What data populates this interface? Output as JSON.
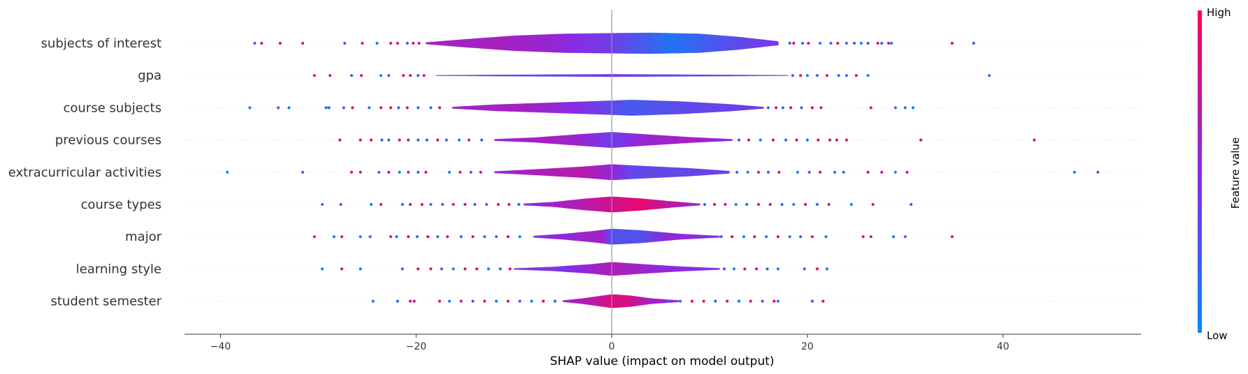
{
  "chart_data": {
    "type": "violin",
    "xlabel": "SHAP value (impact on model output)",
    "xlim": [
      -44,
      54
    ],
    "x_ticks": [
      -40,
      -20,
      0,
      20,
      40
    ],
    "x_tick_labels": [
      "−40",
      "−20",
      "0",
      "20",
      "40"
    ],
    "colorbar": {
      "label": "Feature value",
      "high_label": "High",
      "low_label": "Low",
      "low_color": "#008bfb",
      "high_color": "#ff0052"
    },
    "features": [
      {
        "name": "subjects of interest",
        "max_width": 1.0,
        "profile": [
          [
            -19,
            0.08
          ],
          [
            -15,
            0.38
          ],
          [
            -10,
            0.72
          ],
          [
            -5,
            0.9
          ],
          [
            0,
            0.96
          ],
          [
            4,
            1.0
          ],
          [
            9,
            0.9
          ],
          [
            13,
            0.6
          ],
          [
            17,
            0.18
          ]
        ],
        "color_profile": [
          [
            -19,
            0.6
          ],
          [
            -12,
            0.62
          ],
          [
            -6,
            0.55
          ],
          [
            0,
            0.4
          ],
          [
            6,
            0.12
          ],
          [
            11,
            0.28
          ],
          [
            17,
            0.45
          ]
        ],
        "outliers": [
          -36.5,
          -35.8,
          -33.9,
          -31.6,
          -27.3,
          -25.5,
          -24.0,
          -22.6,
          -21.9,
          -20.9,
          -20.3,
          -19.7,
          18.2,
          18.6,
          19.5,
          20.1,
          21.3,
          22.4,
          23.1,
          24.0,
          24.8,
          25.5,
          26.2,
          27.2,
          27.6,
          28.3,
          28.6,
          34.8,
          37.0
        ],
        "outlier_colors": [
          0.2,
          0.9,
          0.8,
          0.9,
          0.2,
          0.9,
          0.1,
          0.8,
          0.9,
          0.2,
          0.8,
          0.9,
          0.3,
          0.9,
          0.2,
          0.8,
          0.1,
          0.2,
          0.9,
          0.1,
          0.2,
          0.1,
          0.3,
          0.9,
          0.2,
          0.8,
          0.1,
          0.9,
          0.2
        ]
      },
      {
        "name": "gpa",
        "max_width": 0.12,
        "profile": [
          [
            -18,
            0.2
          ],
          [
            -10,
            0.6
          ],
          [
            0,
            1.0
          ],
          [
            10,
            0.6
          ],
          [
            18,
            0.2
          ]
        ],
        "color_profile": [
          [
            -18,
            0.5
          ],
          [
            -8,
            0.3
          ],
          [
            0,
            0.45
          ],
          [
            8,
            0.3
          ],
          [
            18,
            0.5
          ]
        ],
        "outliers": [
          -30.4,
          -28.8,
          -26.6,
          -25.6,
          -23.6,
          -22.8,
          -21.3,
          -20.6,
          -19.8,
          -19.2,
          18.5,
          19.3,
          20.0,
          21.0,
          22.0,
          23.2,
          24.0,
          25.0,
          26.2,
          38.6
        ],
        "outlier_colors": [
          0.9,
          0.8,
          0.2,
          0.9,
          0.1,
          0.2,
          0.9,
          0.8,
          0.2,
          0.9,
          0.2,
          0.9,
          0.1,
          0.2,
          0.8,
          0.1,
          0.2,
          0.9,
          0.1,
          0.2
        ]
      },
      {
        "name": "course subjects",
        "max_width": 0.75,
        "profile": [
          [
            -16.3,
            0.1
          ],
          [
            -12,
            0.4
          ],
          [
            -6,
            0.65
          ],
          [
            0,
            0.9
          ],
          [
            2,
            1.0
          ],
          [
            7,
            0.8
          ],
          [
            12,
            0.45
          ],
          [
            15.5,
            0.1
          ]
        ],
        "color_profile": [
          [
            -16,
            0.6
          ],
          [
            -9,
            0.62
          ],
          [
            -4,
            0.5
          ],
          [
            0,
            0.35
          ],
          [
            2,
            0.25
          ],
          [
            8,
            0.35
          ],
          [
            15,
            0.4
          ]
        ],
        "outliers": [
          -37.0,
          -34.1,
          -33.0,
          -29.2,
          -28.9,
          -27.4,
          -26.5,
          -24.8,
          -23.6,
          -22.6,
          -21.8,
          -20.9,
          -19.8,
          -18.5,
          -17.6,
          16.0,
          16.8,
          17.5,
          18.3,
          19.4,
          20.5,
          21.4,
          26.5,
          29.0,
          30.0,
          30.8
        ],
        "outlier_colors": [
          0.1,
          0.2,
          0.1,
          0.2,
          0.1,
          0.2,
          0.9,
          0.1,
          0.8,
          0.9,
          0.2,
          0.8,
          0.1,
          0.2,
          0.9,
          0.2,
          0.8,
          0.1,
          0.9,
          0.2,
          0.9,
          0.8,
          0.9,
          0.1,
          0.2,
          0.1
        ]
      },
      {
        "name": "previous courses",
        "max_width": 0.75,
        "profile": [
          [
            -12,
            0.1
          ],
          [
            -8,
            0.3
          ],
          [
            -3,
            0.75
          ],
          [
            0,
            1.0
          ],
          [
            3,
            0.75
          ],
          [
            8,
            0.35
          ],
          [
            12.3,
            0.1
          ]
        ],
        "color_profile": [
          [
            -12,
            0.55
          ],
          [
            -7,
            0.62
          ],
          [
            -3,
            0.55
          ],
          [
            0,
            0.4
          ],
          [
            3,
            0.55
          ],
          [
            8,
            0.62
          ],
          [
            12,
            0.5
          ]
        ],
        "outliers": [
          -27.8,
          -25.7,
          -24.6,
          -23.5,
          -22.8,
          -21.7,
          -20.8,
          -19.8,
          -18.9,
          -17.8,
          -16.9,
          -15.6,
          -14.6,
          -13.3,
          13.0,
          14.0,
          15.2,
          16.5,
          17.8,
          18.9,
          20.0,
          21.1,
          22.3,
          23.0,
          24.0,
          31.6,
          43.2
        ],
        "outlier_colors": [
          0.9,
          0.8,
          0.9,
          0.1,
          0.2,
          0.9,
          0.8,
          0.1,
          0.2,
          0.9,
          0.2,
          0.1,
          0.8,
          0.2,
          0.2,
          0.9,
          0.1,
          0.8,
          0.2,
          0.9,
          0.1,
          0.8,
          0.9,
          0.8,
          0.9,
          0.9,
          0.9
        ]
      },
      {
        "name": "extracurricular activities",
        "max_width": 0.75,
        "profile": [
          [
            -12,
            0.1
          ],
          [
            -8,
            0.35
          ],
          [
            -3,
            0.7
          ],
          [
            0,
            1.0
          ],
          [
            3,
            0.8
          ],
          [
            8,
            0.5
          ],
          [
            12,
            0.15
          ]
        ],
        "color_profile": [
          [
            -12,
            0.55
          ],
          [
            -7,
            0.65
          ],
          [
            -3,
            0.7
          ],
          [
            0,
            0.55
          ],
          [
            2,
            0.35
          ],
          [
            7,
            0.35
          ],
          [
            12,
            0.4
          ]
        ],
        "outliers": [
          -39.3,
          -31.6,
          -26.6,
          -25.7,
          -23.8,
          -22.8,
          -21.7,
          -20.8,
          -19.8,
          -19.0,
          -16.6,
          -15.5,
          -14.4,
          -13.4,
          12.8,
          13.9,
          15.0,
          16.0,
          17.1,
          19.0,
          20.2,
          21.3,
          22.8,
          23.7,
          26.2,
          27.6,
          29.0,
          30.2,
          47.3,
          49.7
        ],
        "outlier_colors": [
          0.1,
          0.2,
          0.9,
          0.8,
          0.2,
          0.9,
          0.1,
          0.8,
          0.2,
          0.9,
          0.1,
          0.9,
          0.2,
          0.8,
          0.2,
          0.1,
          0.9,
          0.2,
          0.8,
          0.1,
          0.2,
          0.9,
          0.1,
          0.2,
          0.9,
          0.8,
          0.1,
          0.9,
          0.1,
          0.2
        ]
      },
      {
        "name": "course types",
        "max_width": 0.75,
        "profile": [
          [
            -9,
            0.1
          ],
          [
            -6,
            0.3
          ],
          [
            -3,
            0.7
          ],
          [
            0,
            1.0
          ],
          [
            3,
            0.75
          ],
          [
            6,
            0.4
          ],
          [
            9,
            0.1
          ]
        ],
        "color_profile": [
          [
            -9,
            0.55
          ],
          [
            -4,
            0.65
          ],
          [
            0,
            0.8
          ],
          [
            3,
            0.9
          ],
          [
            6,
            0.7
          ],
          [
            9,
            0.55
          ]
        ],
        "outliers": [
          -29.6,
          -27.7,
          -24.6,
          -23.6,
          -21.4,
          -20.6,
          -19.4,
          -18.5,
          -17.3,
          -16.2,
          -15.0,
          -14.0,
          -12.8,
          -11.6,
          -10.5,
          -9.5,
          9.5,
          10.5,
          11.6,
          12.7,
          13.8,
          15.0,
          16.2,
          17.4,
          18.6,
          19.8,
          21.0,
          22.2,
          24.5,
          26.7,
          30.6
        ],
        "outlier_colors": [
          0.1,
          0.2,
          0.1,
          0.9,
          0.2,
          0.8,
          0.9,
          0.1,
          0.2,
          0.9,
          0.8,
          0.2,
          0.1,
          0.9,
          0.8,
          0.2,
          0.2,
          0.9,
          0.8,
          0.1,
          0.2,
          0.9,
          0.8,
          0.2,
          0.1,
          0.9,
          0.2,
          0.8,
          0.1,
          0.9,
          0.2
        ]
      },
      {
        "name": "major",
        "max_width": 0.75,
        "profile": [
          [
            -8,
            0.1
          ],
          [
            -5,
            0.35
          ],
          [
            -2,
            0.7
          ],
          [
            0,
            1.0
          ],
          [
            3,
            0.8
          ],
          [
            7,
            0.35
          ],
          [
            11,
            0.1
          ]
        ],
        "color_profile": [
          [
            -8,
            0.5
          ],
          [
            -4,
            0.55
          ],
          [
            -1,
            0.6
          ],
          [
            0,
            0.3
          ],
          [
            3,
            0.3
          ],
          [
            6,
            0.55
          ],
          [
            11,
            0.45
          ]
        ],
        "outliers": [
          -30.4,
          -28.4,
          -27.6,
          -25.7,
          -24.7,
          -22.6,
          -22.0,
          -20.8,
          -19.9,
          -18.8,
          -17.8,
          -16.8,
          -15.4,
          -14.2,
          -13.0,
          -11.8,
          -10.6,
          -9.4,
          11.2,
          12.3,
          13.5,
          14.6,
          15.8,
          17.0,
          18.2,
          19.3,
          20.5,
          21.9,
          25.7,
          26.5,
          28.8,
          30.0,
          34.8
        ],
        "outlier_colors": [
          0.9,
          0.1,
          0.9,
          0.1,
          0.2,
          0.9,
          0.1,
          0.8,
          0.2,
          0.9,
          0.1,
          0.8,
          0.2,
          0.9,
          0.1,
          0.2,
          0.8,
          0.1,
          0.2,
          0.9,
          0.1,
          0.8,
          0.2,
          0.9,
          0.1,
          0.2,
          0.9,
          0.1,
          0.9,
          0.8,
          0.1,
          0.2,
          0.9
        ]
      },
      {
        "name": "learning style",
        "max_width": 0.65,
        "profile": [
          [
            -10,
            0.08
          ],
          [
            -6,
            0.3
          ],
          [
            -2,
            0.7
          ],
          [
            0,
            1.0
          ],
          [
            3,
            0.7
          ],
          [
            7,
            0.35
          ],
          [
            11,
            0.1
          ]
        ],
        "color_profile": [
          [
            -10,
            0.5
          ],
          [
            -5,
            0.45
          ],
          [
            0,
            0.65
          ],
          [
            4,
            0.55
          ],
          [
            11,
            0.45
          ]
        ],
        "outliers": [
          -29.6,
          -27.6,
          -25.7,
          -21.4,
          -19.8,
          -18.5,
          -17.4,
          -16.2,
          -15.0,
          -13.8,
          -12.6,
          -11.4,
          -10.4,
          11.5,
          12.5,
          13.6,
          14.8,
          15.9,
          17.0,
          19.7,
          21.0,
          22.0
        ],
        "outlier_colors": [
          0.1,
          0.9,
          0.1,
          0.2,
          0.9,
          0.8,
          0.2,
          0.1,
          0.9,
          0.8,
          0.1,
          0.2,
          0.9,
          0.2,
          0.1,
          0.9,
          0.8,
          0.2,
          0.1,
          0.2,
          0.9,
          0.1
        ]
      },
      {
        "name": "student semester",
        "max_width": 0.65,
        "profile": [
          [
            -5,
            0.1
          ],
          [
            -3,
            0.4
          ],
          [
            -1,
            0.8
          ],
          [
            0,
            1.0
          ],
          [
            2,
            0.8
          ],
          [
            4,
            0.4
          ],
          [
            7,
            0.1
          ]
        ],
        "color_profile": [
          [
            -5,
            0.6
          ],
          [
            -2,
            0.7
          ],
          [
            0,
            0.85
          ],
          [
            2,
            0.8
          ],
          [
            4,
            0.6
          ],
          [
            7,
            0.55
          ]
        ],
        "outliers": [
          -24.4,
          -21.9,
          -20.6,
          -20.2,
          -17.6,
          -16.6,
          -15.4,
          -14.2,
          -13.0,
          -11.8,
          -10.6,
          -9.4,
          -8.2,
          -7.0,
          -5.8,
          5.8,
          7.0,
          8.2,
          9.4,
          10.6,
          11.8,
          13.0,
          14.2,
          15.4,
          16.6,
          17.0,
          20.5,
          21.6
        ],
        "outlier_colors": [
          0.1,
          0.2,
          0.9,
          0.8,
          0.9,
          0.1,
          0.8,
          0.2,
          0.9,
          0.1,
          0.8,
          0.2,
          0.1,
          0.9,
          0.2,
          0.2,
          0.1,
          0.9,
          0.8,
          0.2,
          0.9,
          0.1,
          0.8,
          0.2,
          0.9,
          0.1,
          0.2,
          0.9
        ]
      }
    ]
  }
}
